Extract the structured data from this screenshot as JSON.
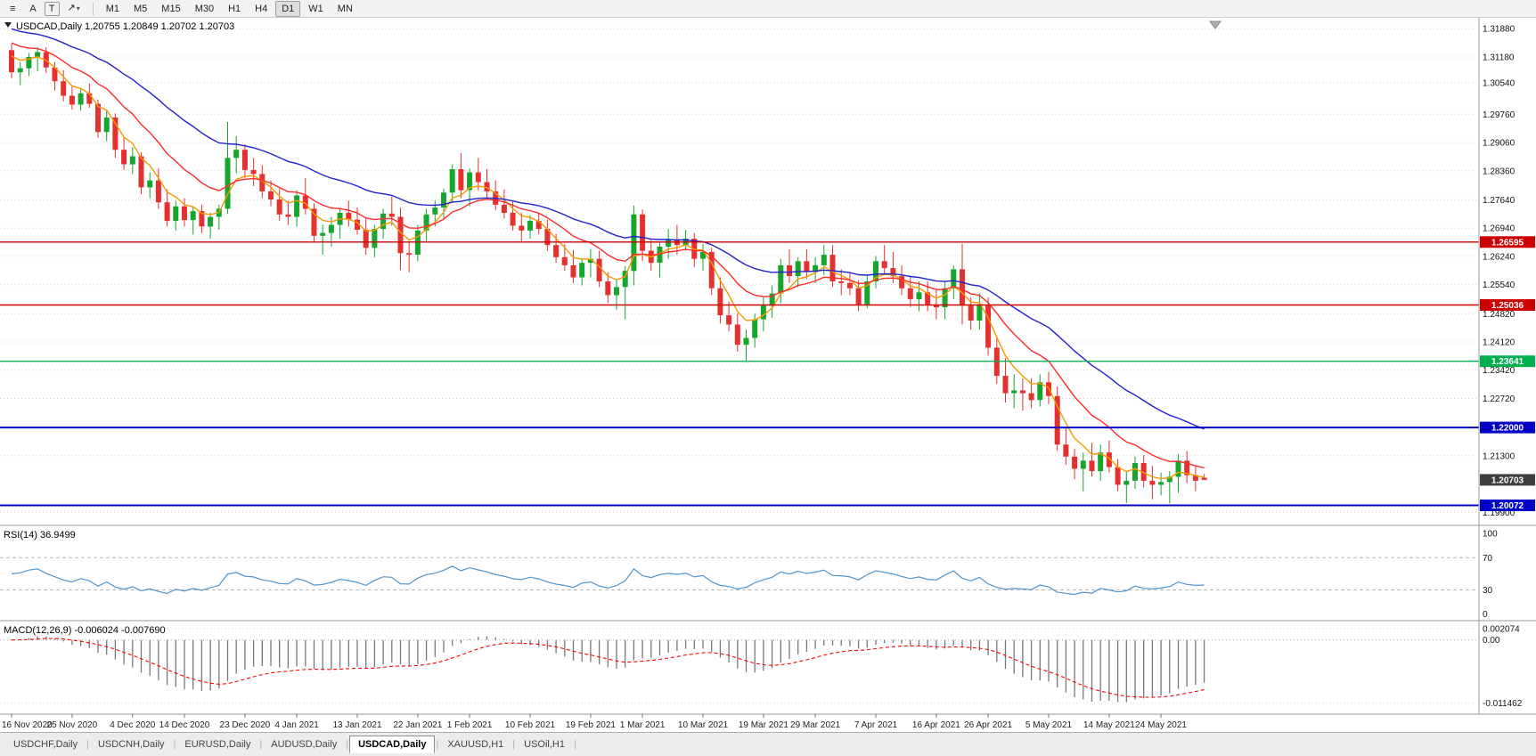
{
  "toolbar": {
    "timeframes": [
      "M1",
      "M5",
      "M15",
      "M30",
      "H1",
      "H4",
      "D1",
      "W1",
      "MN"
    ],
    "active_timeframe": "D1",
    "icon_glyphs": {
      "menu": "≡",
      "arrow_tool": "A",
      "text_tool": "T",
      "draw_tool": "↗",
      "caret": "▾"
    }
  },
  "chart": {
    "header_symbol": "USDCAD,Daily",
    "header_ohlc": "1.20755 1.20849 1.20702 1.20703"
  },
  "tabs": [
    {
      "label": "USDCHF,Daily",
      "active": false
    },
    {
      "label": "USDCNH,Daily",
      "active": false
    },
    {
      "label": "EURUSD,Daily",
      "active": false
    },
    {
      "label": "AUDUSD,Daily",
      "active": false
    },
    {
      "label": "USDCAD,Daily",
      "active": true
    },
    {
      "label": "XAUUSD,H1",
      "active": false
    },
    {
      "label": "USOil,H1",
      "active": false
    }
  ],
  "chart_data": {
    "type": "candlestick",
    "symbol": "USDCAD",
    "timeframe": "Daily",
    "colors": {
      "bull": "#17a52e",
      "bear": "#e53030",
      "rsi": "#4f94cd",
      "macd_hist": "#777777",
      "macd_signal": "#ff0000",
      "current": "#3f3f3f"
    },
    "price_axis": {
      "min": 1.1962,
      "max": 1.3215,
      "ticks": [
        {
          "t": "1.31880",
          "v": 1.3188
        },
        {
          "t": "1.31180",
          "v": 1.3118
        },
        {
          "t": "1.30540",
          "v": 1.3054
        },
        {
          "t": "1.29760",
          "v": 1.2976
        },
        {
          "t": "1.29060",
          "v": 1.2906
        },
        {
          "t": "1.28360",
          "v": 1.2836
        },
        {
          "t": "1.27640",
          "v": 1.2764
        },
        {
          "t": "1.26940",
          "v": 1.2694
        },
        {
          "t": "1.26240",
          "v": 1.2624
        },
        {
          "t": "1.25540",
          "v": 1.2554
        },
        {
          "t": "1.24820",
          "v": 1.2482
        },
        {
          "t": "1.24120",
          "v": 1.2412
        },
        {
          "t": "1.23420",
          "v": 1.2342
        },
        {
          "t": "1.22720",
          "v": 1.2272
        },
        {
          "t": "1.21300",
          "v": 1.213
        },
        {
          "t": "1.19900",
          "v": 1.199
        }
      ]
    },
    "hlines": [
      {
        "v": 1.26595,
        "t": "1.26595",
        "color": "#cc0000",
        "w": 1.4
      },
      {
        "v": 1.25036,
        "t": "1.25036",
        "color": "#cc0000",
        "w": 1.4
      },
      {
        "v": 1.23641,
        "t": "1.23641",
        "color": "#00b050",
        "w": 1.4
      },
      {
        "v": 1.22,
        "t": "1.22000",
        "color": "#0000c8",
        "w": 2
      },
      {
        "v": 1.20072,
        "t": "1.20072",
        "color": "#0000c8",
        "w": 2
      }
    ],
    "current_price": {
      "v": 1.20703,
      "t": "1.20703"
    },
    "mas": [
      {
        "name": "ma-fast-line",
        "period": 5,
        "seed": 1.314,
        "color": "#f59a00"
      },
      {
        "name": "ma-mid-line",
        "period": 13,
        "seed": 1.3165,
        "color": "#ff2a2a"
      },
      {
        "name": "ma-slow-line",
        "period": 30,
        "seed": 1.3195,
        "color": "#2222cc"
      }
    ],
    "rsi": {
      "label": "RSI(14) 36.9499",
      "period": 14,
      "value": 36.9499,
      "scale": {
        "min": -6,
        "max": 108
      },
      "levels": [
        {
          "t": "100",
          "v": 100
        },
        {
          "t": "70",
          "v": 70
        },
        {
          "t": "30",
          "v": 30
        },
        {
          "t": "0",
          "v": 0
        }
      ]
    },
    "macd": {
      "label": "MACD(12,26,9) -0.006024 -0.007690",
      "fast": 12,
      "slow": 26,
      "signal": 9,
      "main_value": -0.006024,
      "signal_value": -0.00769,
      "scale": {
        "min": -0.0135,
        "max": 0.0032
      },
      "levels": [
        {
          "t": "0.002074",
          "v": 0.002074
        },
        {
          "t": "0.00",
          "v": 0
        },
        {
          "t": "-0.011462",
          "v": -0.011462
        }
      ]
    },
    "dates": [
      {
        "t": "16 Nov 2020",
        "i": 0
      },
      {
        "t": "25 Nov 2020",
        "i": 7
      },
      {
        "t": "4 Dec 2020",
        "i": 14
      },
      {
        "t": "14 Dec 2020",
        "i": 20
      },
      {
        "t": "23 Dec 2020",
        "i": 27
      },
      {
        "t": "4 Jan 2021",
        "i": 33
      },
      {
        "t": "13 Jan 2021",
        "i": 40
      },
      {
        "t": "22 Jan 2021",
        "i": 47
      },
      {
        "t": "1 Feb 2021",
        "i": 53
      },
      {
        "t": "10 Feb 2021",
        "i": 60
      },
      {
        "t": "19 Feb 2021",
        "i": 67
      },
      {
        "t": "1 Mar 2021",
        "i": 73
      },
      {
        "t": "10 Mar 2021",
        "i": 80
      },
      {
        "t": "19 Mar 2021",
        "i": 87
      },
      {
        "t": "29 Mar 2021",
        "i": 93
      },
      {
        "t": "7 Apr 2021",
        "i": 100
      },
      {
        "t": "16 Apr 2021",
        "i": 107
      },
      {
        "t": "26 Apr 2021",
        "i": 113
      },
      {
        "t": "5 May 2021",
        "i": 120
      },
      {
        "t": "14 May 2021",
        "i": 127
      },
      {
        "t": "24 May 2021",
        "i": 133
      }
    ],
    "candles": [
      [
        1.3135,
        1.315,
        1.3065,
        1.308
      ],
      [
        1.308,
        1.3105,
        1.3048,
        1.309
      ],
      [
        1.309,
        1.3128,
        1.307,
        1.3118
      ],
      [
        1.3118,
        1.3142,
        1.3082,
        1.313
      ],
      [
        1.313,
        1.3142,
        1.3078,
        1.3092
      ],
      [
        1.3092,
        1.3105,
        1.3035,
        1.3058
      ],
      [
        1.3058,
        1.3085,
        1.3008,
        1.3022
      ],
      [
        1.3022,
        1.3048,
        1.2988,
        1.3
      ],
      [
        1.3,
        1.3038,
        1.2985,
        1.3028
      ],
      [
        1.3028,
        1.3052,
        1.2992,
        1.3002
      ],
      [
        1.3002,
        1.3012,
        1.2918,
        1.2932
      ],
      [
        1.2932,
        1.2988,
        1.291,
        1.2968
      ],
      [
        1.2968,
        1.2978,
        1.2868,
        1.2888
      ],
      [
        1.2888,
        1.292,
        1.2838,
        1.2852
      ],
      [
        1.2852,
        1.2895,
        1.2828,
        1.2872
      ],
      [
        1.2872,
        1.2882,
        1.2778,
        1.2795
      ],
      [
        1.2795,
        1.2832,
        1.2768,
        1.2812
      ],
      [
        1.2812,
        1.2842,
        1.2742,
        1.2758
      ],
      [
        1.2758,
        1.279,
        1.2698,
        1.2712
      ],
      [
        1.2712,
        1.2762,
        1.2688,
        1.2748
      ],
      [
        1.2748,
        1.2768,
        1.2698,
        1.2714
      ],
      [
        1.2714,
        1.2745,
        1.2678,
        1.2736
      ],
      [
        1.2736,
        1.2752,
        1.2682,
        1.2698
      ],
      [
        1.2698,
        1.2732,
        1.2668,
        1.2722
      ],
      [
        1.2722,
        1.2752,
        1.269,
        1.2742
      ],
      [
        1.2742,
        1.2957,
        1.273,
        1.2868
      ],
      [
        1.2868,
        1.2922,
        1.283,
        1.2888
      ],
      [
        1.2888,
        1.2902,
        1.2818,
        1.2838
      ],
      [
        1.2838,
        1.2868,
        1.2798,
        1.2828
      ],
      [
        1.2828,
        1.285,
        1.2768,
        1.2785
      ],
      [
        1.2785,
        1.2812,
        1.2748,
        1.2765
      ],
      [
        1.2765,
        1.2792,
        1.2712,
        1.2728
      ],
      [
        1.2728,
        1.2762,
        1.2702,
        1.2722
      ],
      [
        1.2722,
        1.2788,
        1.2698,
        1.2775
      ],
      [
        1.2775,
        1.2818,
        1.2728,
        1.2742
      ],
      [
        1.2742,
        1.2755,
        1.2658,
        1.2675
      ],
      [
        1.2675,
        1.2702,
        1.2628,
        1.2682
      ],
      [
        1.2682,
        1.2722,
        1.2648,
        1.2702
      ],
      [
        1.2702,
        1.2742,
        1.2668,
        1.2732
      ],
      [
        1.2732,
        1.2762,
        1.2698,
        1.2715
      ],
      [
        1.2715,
        1.2745,
        1.2678,
        1.269
      ],
      [
        1.269,
        1.272,
        1.2628,
        1.2645
      ],
      [
        1.2645,
        1.2702,
        1.2622,
        1.2692
      ],
      [
        1.2692,
        1.2742,
        1.2668,
        1.273
      ],
      [
        1.273,
        1.2772,
        1.27,
        1.2722
      ],
      [
        1.2722,
        1.2745,
        1.259,
        1.2632
      ],
      [
        1.2632,
        1.2662,
        1.2585,
        1.2628
      ],
      [
        1.2628,
        1.2702,
        1.2612,
        1.2688
      ],
      [
        1.2688,
        1.2742,
        1.266,
        1.2728
      ],
      [
        1.2728,
        1.2762,
        1.2698,
        1.2745
      ],
      [
        1.2745,
        1.2792,
        1.2718,
        1.2782
      ],
      [
        1.2782,
        1.2852,
        1.2758,
        1.284
      ],
      [
        1.284,
        1.288,
        1.2768,
        1.2788
      ],
      [
        1.2788,
        1.2842,
        1.2748,
        1.2832
      ],
      [
        1.2832,
        1.2868,
        1.2788,
        1.2808
      ],
      [
        1.2808,
        1.284,
        1.2768,
        1.2785
      ],
      [
        1.2785,
        1.2812,
        1.2738,
        1.2752
      ],
      [
        1.2752,
        1.279,
        1.2718,
        1.2732
      ],
      [
        1.2732,
        1.276,
        1.2688,
        1.27
      ],
      [
        1.27,
        1.2732,
        1.2658,
        1.2688
      ],
      [
        1.2688,
        1.2726,
        1.2668,
        1.2712
      ],
      [
        1.2712,
        1.2732,
        1.2678,
        1.2692
      ],
      [
        1.2692,
        1.2715,
        1.2638,
        1.2652
      ],
      [
        1.2652,
        1.268,
        1.2608,
        1.2622
      ],
      [
        1.2622,
        1.2655,
        1.2588,
        1.2602
      ],
      [
        1.2602,
        1.264,
        1.2558,
        1.2572
      ],
      [
        1.2572,
        1.262,
        1.2552,
        1.2608
      ],
      [
        1.2608,
        1.2642,
        1.2572,
        1.2618
      ],
      [
        1.2618,
        1.2638,
        1.2548,
        1.2562
      ],
      [
        1.2562,
        1.2585,
        1.2508,
        1.2528
      ],
      [
        1.2528,
        1.2568,
        1.2492,
        1.2548
      ],
      [
        1.2548,
        1.26,
        1.2468,
        1.2588
      ],
      [
        1.2588,
        1.275,
        1.2552,
        1.2728
      ],
      [
        1.2728,
        1.274,
        1.2612,
        1.2638
      ],
      [
        1.2638,
        1.2665,
        1.2588,
        1.2608
      ],
      [
        1.2608,
        1.266,
        1.2572,
        1.2648
      ],
      [
        1.2648,
        1.2692,
        1.2618,
        1.2665
      ],
      [
        1.2665,
        1.2702,
        1.2628,
        1.2652
      ],
      [
        1.2652,
        1.269,
        1.2638,
        1.2668
      ],
      [
        1.2668,
        1.2682,
        1.2598,
        1.2618
      ],
      [
        1.2618,
        1.2655,
        1.2588,
        1.2635
      ],
      [
        1.2635,
        1.2645,
        1.2528,
        1.2545
      ],
      [
        1.2545,
        1.2572,
        1.2458,
        1.2478
      ],
      [
        1.2478,
        1.2512,
        1.2438,
        1.2455
      ],
      [
        1.2455,
        1.2482,
        1.2388,
        1.2405
      ],
      [
        1.2405,
        1.2442,
        1.2365,
        1.2422
      ],
      [
        1.2422,
        1.2482,
        1.2398,
        1.2468
      ],
      [
        1.2468,
        1.2522,
        1.2438,
        1.2502
      ],
      [
        1.2502,
        1.2552,
        1.2472,
        1.2532
      ],
      [
        1.2532,
        1.2618,
        1.2508,
        1.2602
      ],
      [
        1.2602,
        1.2642,
        1.2558,
        1.2575
      ],
      [
        1.2575,
        1.2622,
        1.2548,
        1.2612
      ],
      [
        1.2612,
        1.2642,
        1.2568,
        1.2585
      ],
      [
        1.2585,
        1.2622,
        1.2558,
        1.2602
      ],
      [
        1.2602,
        1.2652,
        1.2578,
        1.2628
      ],
      [
        1.2628,
        1.2652,
        1.2548,
        1.2562
      ],
      [
        1.2562,
        1.2592,
        1.2528,
        1.2558
      ],
      [
        1.2558,
        1.2582,
        1.2528,
        1.2545
      ],
      [
        1.2545,
        1.2565,
        1.2488,
        1.2505
      ],
      [
        1.2505,
        1.2578,
        1.2495,
        1.2562
      ],
      [
        1.2562,
        1.2625,
        1.2545,
        1.2612
      ],
      [
        1.2612,
        1.2652,
        1.2578,
        1.2595
      ],
      [
        1.2595,
        1.2635,
        1.2558,
        1.2575
      ],
      [
        1.2575,
        1.2602,
        1.2528,
        1.2545
      ],
      [
        1.2545,
        1.2575,
        1.2498,
        1.2518
      ],
      [
        1.2518,
        1.2562,
        1.2488,
        1.2535
      ],
      [
        1.2535,
        1.2562,
        1.2488,
        1.2505
      ],
      [
        1.2505,
        1.2542,
        1.2468,
        1.2498
      ],
      [
        1.2498,
        1.2562,
        1.2468,
        1.2545
      ],
      [
        1.2545,
        1.2602,
        1.2518,
        1.2592
      ],
      [
        1.2592,
        1.2655,
        1.2455,
        1.2502
      ],
      [
        1.2502,
        1.2522,
        1.2442,
        1.2465
      ],
      [
        1.2465,
        1.2532,
        1.2442,
        1.2505
      ],
      [
        1.2505,
        1.2522,
        1.2378,
        1.2398
      ],
      [
        1.2398,
        1.2422,
        1.2308,
        1.2328
      ],
      [
        1.2328,
        1.2372,
        1.2262,
        1.2285
      ],
      [
        1.2285,
        1.2332,
        1.2248,
        1.2292
      ],
      [
        1.2292,
        1.2322,
        1.2242,
        1.2285
      ],
      [
        1.2285,
        1.2322,
        1.2248,
        1.2268
      ],
      [
        1.2268,
        1.2332,
        1.2252,
        1.2312
      ],
      [
        1.2312,
        1.2338,
        1.2258,
        1.2278
      ],
      [
        1.2278,
        1.2302,
        1.2142,
        1.2158
      ],
      [
        1.2158,
        1.2202,
        1.2108,
        1.2128
      ],
      [
        1.2128,
        1.2148,
        1.2072,
        1.2098
      ],
      [
        1.2098,
        1.2138,
        1.2042,
        1.2118
      ],
      [
        1.2118,
        1.2162,
        1.2078,
        1.2092
      ],
      [
        1.2092,
        1.2158,
        1.2068,
        1.2138
      ],
      [
        1.2138,
        1.2168,
        1.2088,
        1.2102
      ],
      [
        1.2102,
        1.2122,
        1.2042,
        1.2058
      ],
      [
        1.2058,
        1.2092,
        1.2013,
        1.2068
      ],
      [
        1.2068,
        1.2128,
        1.2048,
        1.2112
      ],
      [
        1.2112,
        1.2132,
        1.2052,
        1.2068
      ],
      [
        1.2068,
        1.2105,
        1.2022,
        1.2058
      ],
      [
        1.2058,
        1.2088,
        1.2032,
        1.2065
      ],
      [
        1.2065,
        1.2092,
        1.2012,
        1.2078
      ],
      [
        1.2078,
        1.2135,
        1.2038,
        1.2118
      ],
      [
        1.2118,
        1.2142,
        1.2062,
        1.2082
      ],
      [
        1.2082,
        1.2105,
        1.2042,
        1.2068
      ],
      [
        1.20755,
        1.20849,
        1.20702,
        1.20703
      ]
    ]
  }
}
